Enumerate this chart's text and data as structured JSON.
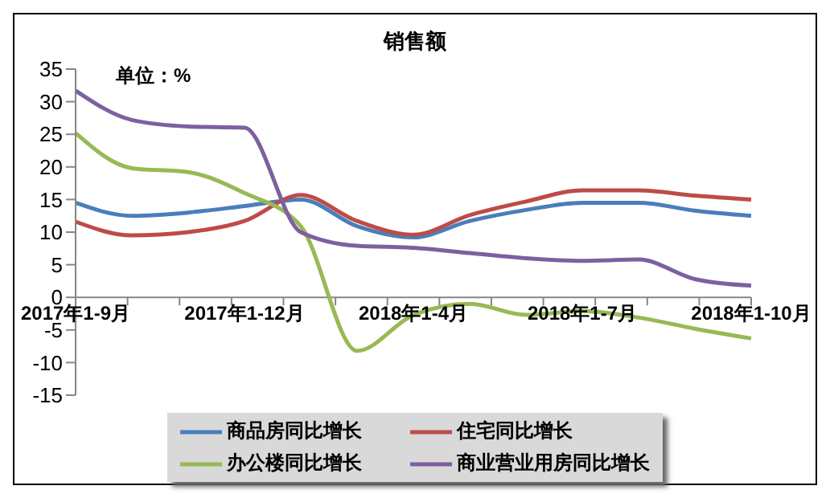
{
  "chart_data": {
    "type": "line",
    "title": "销售额",
    "annotations": [
      "单位：%"
    ],
    "categories": [
      "2017年1-9月",
      null,
      null,
      "2017年1-12月",
      null,
      null,
      "2018年1-4月",
      null,
      null,
      "2018年1-7月",
      null,
      null,
      "2018年1-10月"
    ],
    "series": [
      {
        "name": "商品房同比增长",
        "color": "#4a7ebb",
        "values": [
          14.5,
          12.5,
          13,
          14,
          15,
          10.9,
          9.2,
          11.7,
          13.4,
          14.5,
          14.5,
          13.3,
          12.5
        ]
      },
      {
        "name": "住宅同比增长",
        "color": "#be4b48",
        "values": [
          11.6,
          9.5,
          10,
          11.7,
          15.7,
          11.7,
          9.6,
          12.6,
          14.7,
          16.4,
          16.4,
          15.6,
          15
        ]
      },
      {
        "name": "办公楼同比增长",
        "color": "#98b954",
        "values": [
          25.2,
          19.8,
          19.2,
          16,
          10.9,
          -8.2,
          -2.7,
          -1,
          -2.7,
          -2.1,
          -3.1,
          -4.8,
          -6.3
        ]
      },
      {
        "name": "商业营业用房同比增长",
        "color": "#7d60a0",
        "values": [
          31.7,
          27.2,
          26.2,
          26,
          10,
          7.9,
          7.6,
          6.8,
          6,
          5.6,
          5.8,
          2.8,
          1.8
        ]
      }
    ],
    "ylim": [
      -15,
      35
    ],
    "yticks": [
      -15,
      -10,
      -5,
      0,
      5,
      10,
      15,
      20,
      25,
      30,
      35
    ],
    "legend": "bottom",
    "line_style": "solid"
  }
}
